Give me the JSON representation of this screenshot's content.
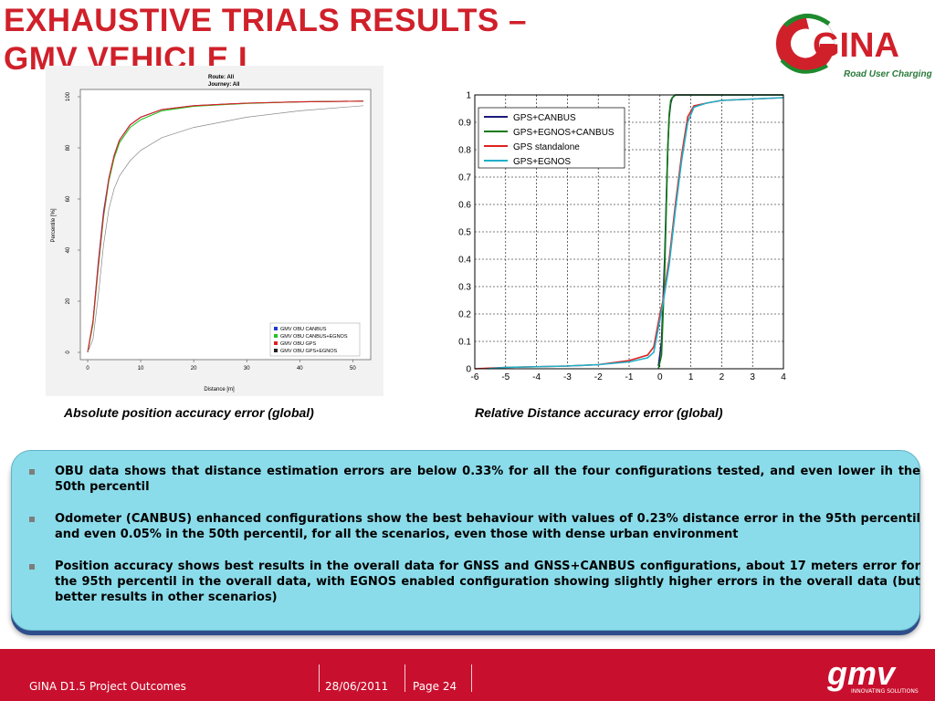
{
  "title": {
    "line1": "EXHAUSTIVE TRIALS RESULTS –",
    "line2": "GMV VEHICLE I"
  },
  "logo": {
    "text": "GINA",
    "subtitle": "Road User Charging"
  },
  "captions": {
    "left": "Absolute position accuracy error (global)",
    "right": "Relative Distance accuracy error (global)"
  },
  "bullets": [
    "OBU data shows that distance estimation errors are below 0.33% for all the four configurations tested, and even lower ih the 50th percentil",
    "Odometer (CANBUS) enhanced configurations show the best behaviour with values of 0.23% distance error in the 95th percentil and even 0.05% in the 50th percentil, for all the scenarios, even those with dense urban environment",
    "Position accuracy shows best results in the overall data for GNSS and GNSS+CANBUS configurations, about 17 meters error for the 95th percentil in the overall data, with EGNOS enabled configuration showing slightly higher errors in the overall data (but better results in other scenarios)"
  ],
  "footer": {
    "project": "GINA D1.5 Project Outcomes",
    "date": "28/06/2011",
    "page": "Page 24",
    "brand": "gmv",
    "brand_tag": "INNOVATING SOLUTIONS"
  },
  "colors": {
    "accent_red": "#d0202a",
    "footer_red": "#c8102e",
    "panel": "#8bdcea"
  },
  "chart_data": [
    {
      "type": "line",
      "title": "Route: All",
      "subtitle": "Journey: All",
      "xlabel": "Distance [m]",
      "ylabel": "Percentile [%]",
      "xlim": [
        0,
        52
      ],
      "ylim": [
        0,
        100
      ],
      "xticks": [
        "0",
        "10",
        "20",
        "30",
        "40",
        "50"
      ],
      "yticks": [
        "0",
        "20",
        "40",
        "60",
        "80",
        "100"
      ],
      "legend_position": "bottom-right",
      "legend": [
        {
          "label": "GMV OBU CANBUS",
          "color": "#1f3cc8"
        },
        {
          "label": "GMV OBU CANBUS+EGNOS",
          "color": "#22c322"
        },
        {
          "label": "GMV OBU GPS",
          "color": "#e02020"
        },
        {
          "label": "GMV OBU GPS+EGNOS",
          "color": "#222222"
        }
      ],
      "series": [
        {
          "color": "#1f3cc8",
          "x": [
            0,
            1,
            2,
            3,
            4,
            5,
            6,
            8,
            10,
            14,
            20,
            30,
            40,
            52
          ],
          "y": [
            0,
            12,
            35,
            55,
            68,
            77,
            83,
            89,
            92,
            95,
            96.5,
            97.5,
            98,
            98.3
          ]
        },
        {
          "color": "#22c322",
          "x": [
            0,
            1,
            2,
            3,
            4,
            5,
            6,
            8,
            10,
            14,
            20,
            30,
            40,
            52
          ],
          "y": [
            0,
            11,
            33,
            53,
            67,
            76,
            82,
            88,
            91,
            94.5,
            96.3,
            97.4,
            98,
            98.3
          ]
        },
        {
          "color": "#e02020",
          "x": [
            0,
            1,
            2,
            3,
            4,
            5,
            6,
            8,
            10,
            14,
            20,
            30,
            40,
            52
          ],
          "y": [
            0,
            12,
            34,
            54,
            68,
            77,
            83,
            89,
            92,
            95,
            96.5,
            97.5,
            98,
            98.3
          ]
        },
        {
          "color": "#888888",
          "x": [
            0,
            1,
            2,
            3,
            4,
            5,
            6,
            8,
            10,
            14,
            20,
            30,
            40,
            52
          ],
          "y": [
            0,
            5,
            22,
            42,
            56,
            64,
            69,
            75,
            79,
            84,
            88,
            92,
            94.5,
            96.5
          ]
        }
      ]
    },
    {
      "type": "line",
      "xlim": [
        -6,
        4
      ],
      "ylim": [
        0,
        1
      ],
      "xticks": [
        "-6",
        "-5",
        "-4",
        "-3",
        "-2",
        "-1",
        "0",
        "1",
        "2",
        "3",
        "4"
      ],
      "yticks": [
        "0",
        "0.1",
        "0.2",
        "0.3",
        "0.4",
        "0.5",
        "0.6",
        "0.7",
        "0.8",
        "0.9",
        "1"
      ],
      "legend_position": "top-left",
      "legend": [
        {
          "label": "GPS+CANBUS",
          "color": "#1a1a7a"
        },
        {
          "label": "GPS+EGNOS+CANBUS",
          "color": "#137a13"
        },
        {
          "label": "GPS standalone",
          "color": "#e02020"
        },
        {
          "label": "GPS+EGNOS",
          "color": "#20b0c8"
        }
      ],
      "series": [
        {
          "color": "#1a1a7a",
          "x": [
            -0.05,
            0.05,
            0.15,
            0.25,
            0.3,
            0.35,
            0.4,
            0.5,
            0.7,
            1.5,
            4
          ],
          "y": [
            0.01,
            0.1,
            0.4,
            0.8,
            0.92,
            0.97,
            0.99,
            1,
            1,
            1,
            1
          ]
        },
        {
          "color": "#137a13",
          "x": [
            -0.05,
            0.05,
            0.15,
            0.25,
            0.3,
            0.35,
            0.4,
            0.5,
            0.7,
            1.5,
            4
          ],
          "y": [
            0,
            0.05,
            0.35,
            0.8,
            0.93,
            0.98,
            0.99,
            1,
            1,
            1,
            1
          ]
        },
        {
          "color": "#e02020",
          "x": [
            -6,
            -5,
            -3,
            -2,
            -1,
            -0.4,
            -0.2,
            0,
            0.1,
            0.3,
            0.5,
            0.7,
            0.9,
            1.1,
            1.5,
            2,
            3,
            4
          ],
          "y": [
            0,
            0.005,
            0.01,
            0.015,
            0.03,
            0.05,
            0.08,
            0.2,
            0.25,
            0.4,
            0.6,
            0.78,
            0.92,
            0.96,
            0.97,
            0.98,
            0.985,
            0.99
          ]
        },
        {
          "color": "#20b0c8",
          "x": [
            -5.6,
            -5,
            -3,
            -2,
            -1,
            -0.4,
            -0.2,
            0,
            0.1,
            0.3,
            0.5,
            0.7,
            0.9,
            1.1,
            1.5,
            2,
            3,
            4
          ],
          "y": [
            0,
            0.005,
            0.01,
            0.015,
            0.025,
            0.04,
            0.06,
            0.18,
            0.24,
            0.38,
            0.58,
            0.76,
            0.9,
            0.955,
            0.97,
            0.98,
            0.985,
            0.99
          ]
        }
      ]
    }
  ]
}
